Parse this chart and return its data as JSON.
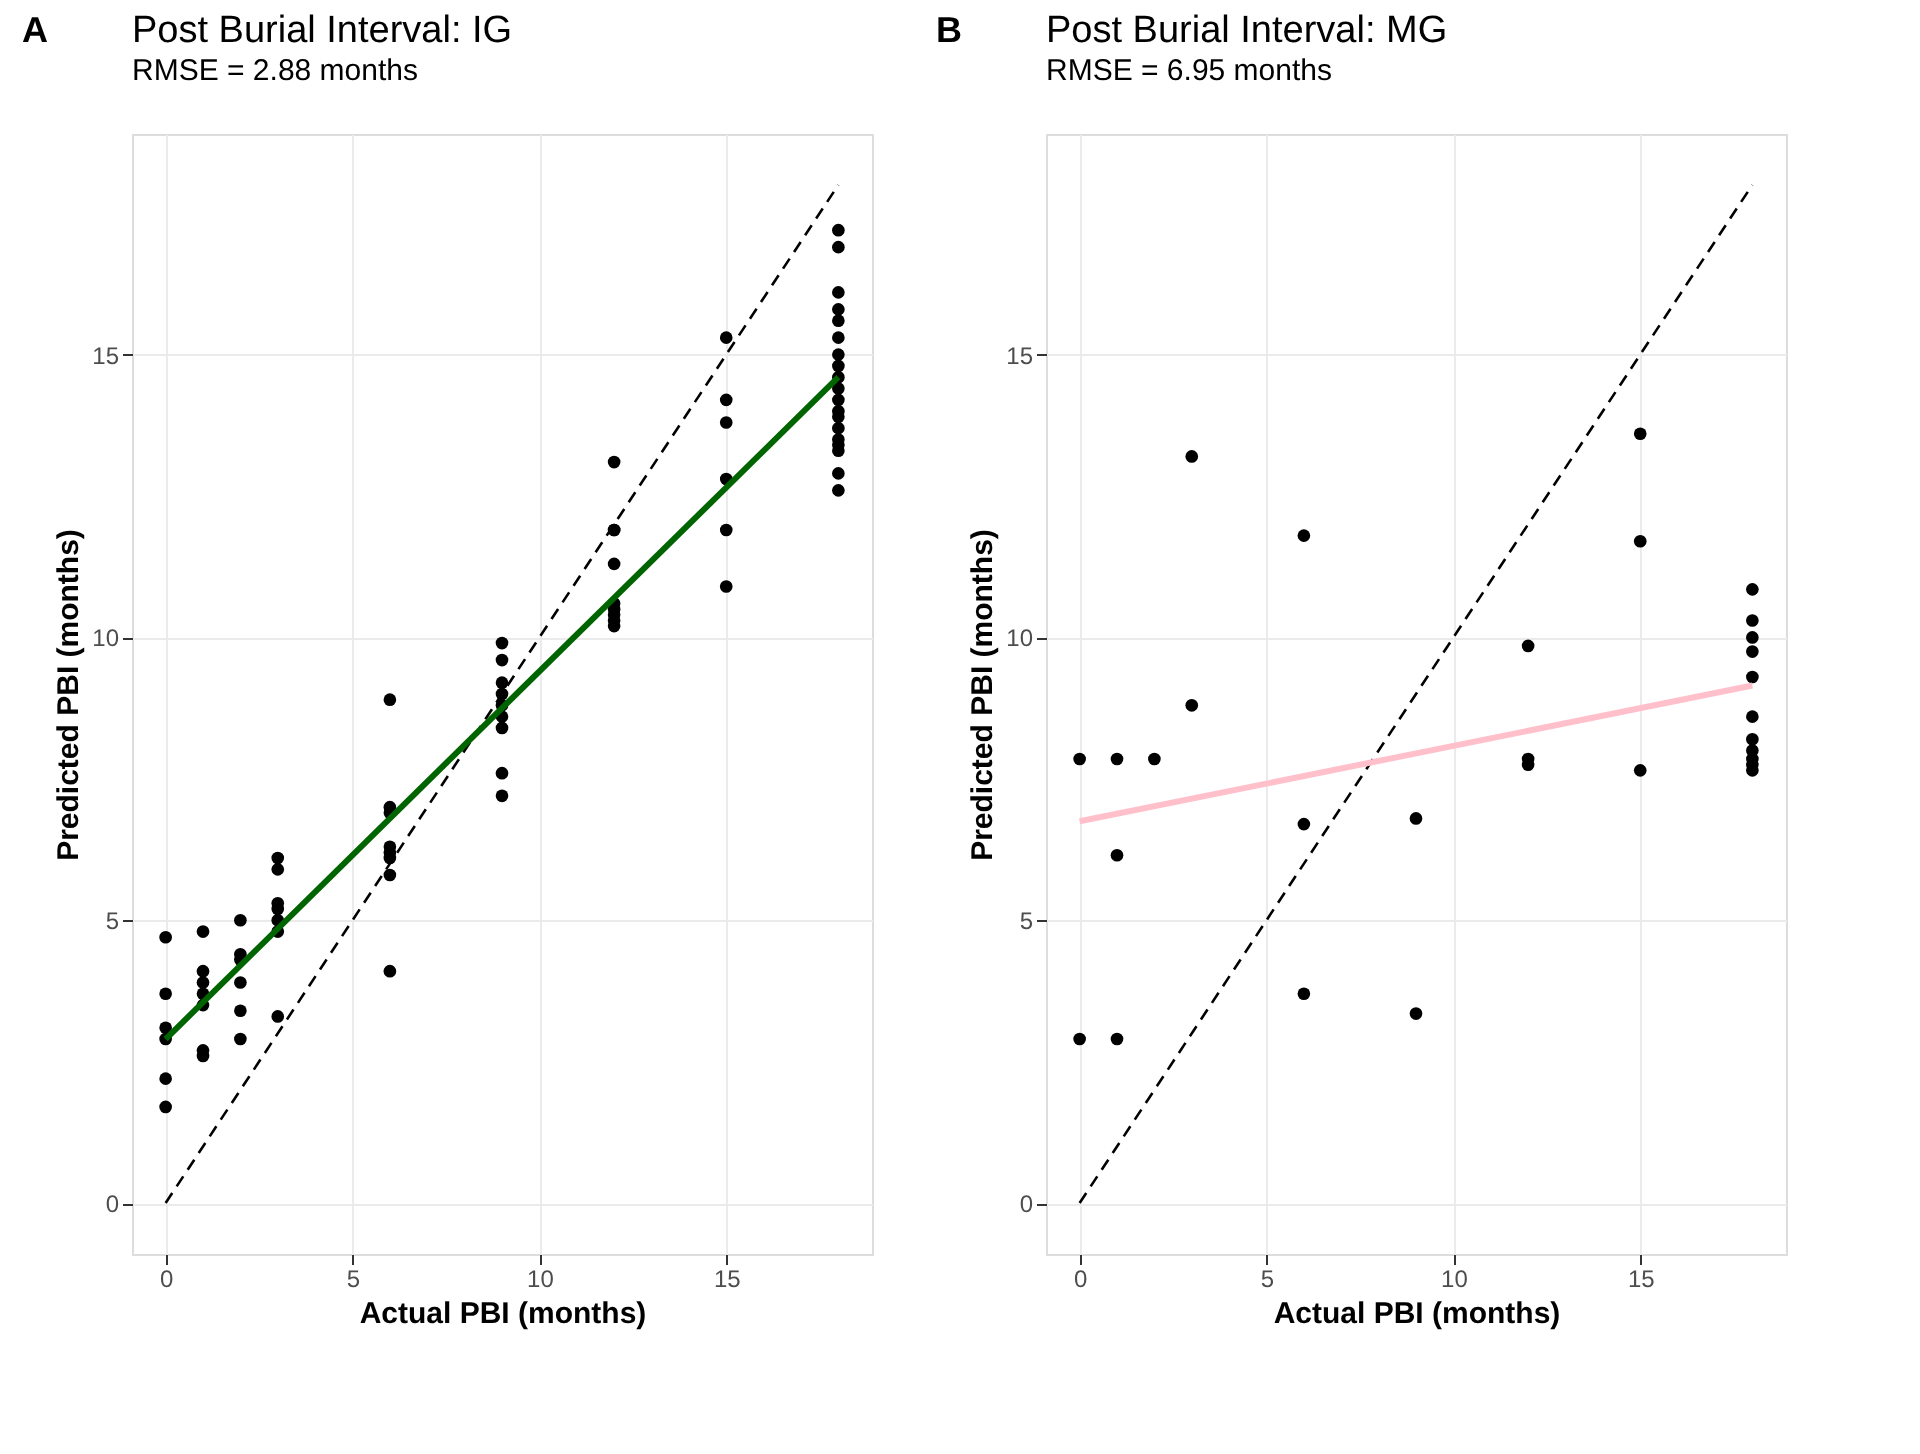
{
  "chart_data": [
    {
      "type": "scatter",
      "title": "Post Burial Interval: IG",
      "subtitle": "RMSE = 2.88 months",
      "xlabel": "Actual PBI (months)",
      "ylabel": "Predicted PBI (months)",
      "annotations": [
        "A"
      ],
      "xlim": [
        -0.9,
        18.9
      ],
      "ylim": [
        -0.9,
        18.9
      ],
      "xticks": [
        0,
        5,
        10,
        15
      ],
      "yticks": [
        0,
        5,
        10,
        15
      ],
      "grid": true,
      "series": [
        {
          "color": "#000000",
          "marker": "circle",
          "x": [
            0,
            0,
            0,
            0,
            0,
            0,
            1,
            1,
            1,
            1,
            1,
            1,
            1,
            2,
            2,
            2,
            2,
            2,
            2,
            3,
            3,
            3,
            3,
            3,
            3,
            3,
            6,
            6,
            6,
            6,
            6,
            6,
            6,
            6,
            9,
            9,
            9,
            9,
            9,
            9,
            9,
            9,
            9,
            12,
            12,
            12,
            12,
            12,
            12,
            12,
            12,
            12,
            15,
            15,
            15,
            15,
            15,
            15,
            18,
            18,
            18,
            18,
            18,
            18,
            18,
            18,
            18,
            18,
            18,
            18,
            18,
            18,
            18,
            18,
            18,
            18,
            18
          ],
          "values": [
            4.7,
            3.7,
            3.1,
            2.9,
            2.2,
            1.7,
            4.8,
            4.1,
            3.9,
            3.7,
            3.5,
            2.7,
            2.6,
            5.0,
            4.4,
            4.3,
            3.9,
            3.4,
            2.9,
            6.1,
            5.9,
            5.3,
            5.2,
            5.0,
            4.8,
            3.3,
            8.9,
            7.0,
            6.9,
            6.3,
            6.2,
            6.1,
            5.8,
            4.1,
            9.9,
            9.6,
            9.2,
            9.0,
            8.8,
            8.6,
            8.4,
            7.6,
            7.2,
            13.1,
            11.9,
            11.9,
            11.3,
            10.6,
            10.5,
            10.4,
            10.3,
            10.2,
            15.3,
            14.2,
            13.8,
            12.8,
            11.9,
            10.9,
            17.2,
            16.9,
            16.1,
            15.8,
            15.6,
            15.3,
            15.0,
            14.8,
            14.6,
            14.4,
            14.2,
            14.0,
            13.9,
            13.7,
            13.5,
            13.4,
            13.3,
            12.9,
            12.6
          ]
        },
        {
          "type": "line",
          "color": "#000000",
          "line_style": "dashed",
          "x": [
            0,
            18
          ],
          "values": [
            0,
            18
          ]
        },
        {
          "type": "line",
          "color": "#006400",
          "line_style": "solid",
          "x": [
            0,
            18
          ],
          "values": [
            2.9,
            14.6
          ]
        }
      ]
    },
    {
      "type": "scatter",
      "title": "Post Burial Interval: MG",
      "subtitle": "RMSE = 6.95 months",
      "xlabel": "Actual PBI (months)",
      "ylabel": "Predicted PBI (months)",
      "annotations": [
        "B"
      ],
      "xlim": [
        -0.9,
        18.9
      ],
      "ylim": [
        -0.9,
        18.9
      ],
      "xticks": [
        0,
        5,
        10,
        15
      ],
      "yticks": [
        0,
        5,
        10,
        15
      ],
      "grid": true,
      "series": [
        {
          "color": "#000000",
          "marker": "circle",
          "x": [
            0,
            0,
            1,
            1,
            1,
            2,
            3,
            3,
            6,
            6,
            6,
            9,
            9,
            12,
            12,
            12,
            15,
            15,
            15,
            18,
            18,
            18,
            18,
            18,
            18,
            18,
            18,
            18,
            18,
            18
          ],
          "values": [
            7.85,
            2.9,
            7.85,
            6.15,
            2.9,
            7.85,
            13.2,
            8.8,
            11.8,
            6.7,
            3.7,
            6.8,
            3.35,
            9.85,
            7.85,
            7.75,
            13.6,
            11.7,
            7.65,
            10.85,
            10.3,
            10.0,
            9.75,
            9.3,
            8.6,
            8.2,
            8.0,
            7.85,
            7.75,
            7.65
          ]
        },
        {
          "type": "line",
          "color": "#000000",
          "line_style": "dashed",
          "x": [
            0,
            18
          ],
          "values": [
            0,
            18
          ]
        },
        {
          "type": "line",
          "color": "#ffc0cb",
          "line_style": "solid",
          "x": [
            0,
            18
          ],
          "values": [
            6.75,
            9.15
          ]
        }
      ]
    }
  ]
}
